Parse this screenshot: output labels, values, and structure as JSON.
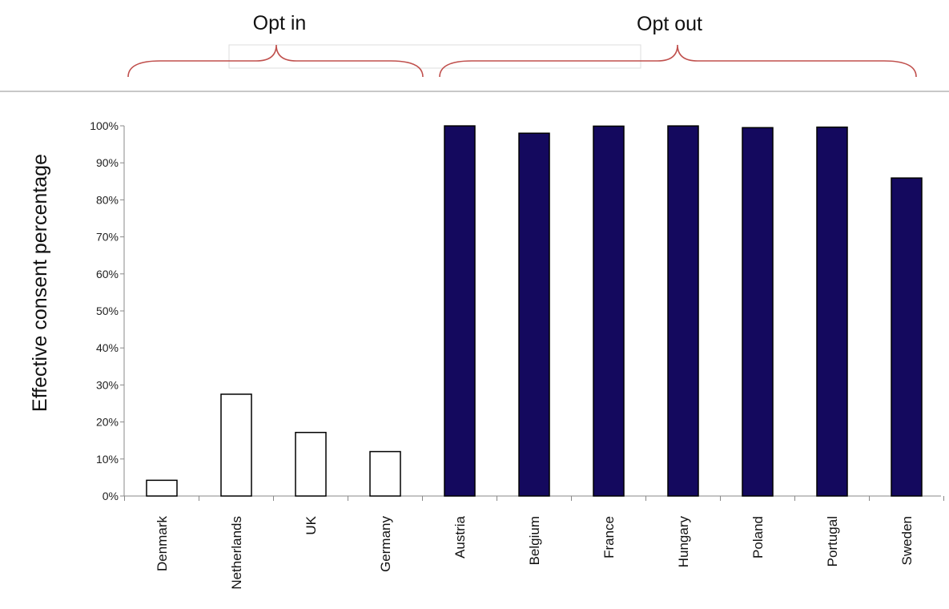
{
  "chart_data": {
    "type": "bar",
    "categories": [
      "Denmark",
      "Netherlands",
      "UK",
      "Germany",
      "Austria",
      "Belgium",
      "France",
      "Hungary",
      "Poland",
      "Portugal",
      "Sweden"
    ],
    "values": [
      4.25,
      27.5,
      17.17,
      12.0,
      99.98,
      98.0,
      99.91,
      99.97,
      99.5,
      99.64,
      85.9
    ],
    "groups": [
      {
        "label": "Opt in",
        "categories": [
          "Denmark",
          "Netherlands",
          "UK",
          "Germany"
        ],
        "bar_fill": "#ffffff",
        "bar_stroke": "#000000"
      },
      {
        "label": "Opt out",
        "categories": [
          "Austria",
          "Belgium",
          "France",
          "Hungary",
          "Poland",
          "Portugal",
          "Sweden"
        ],
        "bar_fill": "#14095e",
        "bar_stroke": "#000000"
      }
    ],
    "yticks": [
      "0%",
      "10%",
      "20%",
      "30%",
      "40%",
      "50%",
      "60%",
      "70%",
      "80%",
      "90%",
      "100%"
    ],
    "ylabel": "Effective consent percentage",
    "xlabel": "",
    "ylim": [
      0,
      100
    ],
    "grid": false,
    "brace_color": "#c0504d"
  }
}
